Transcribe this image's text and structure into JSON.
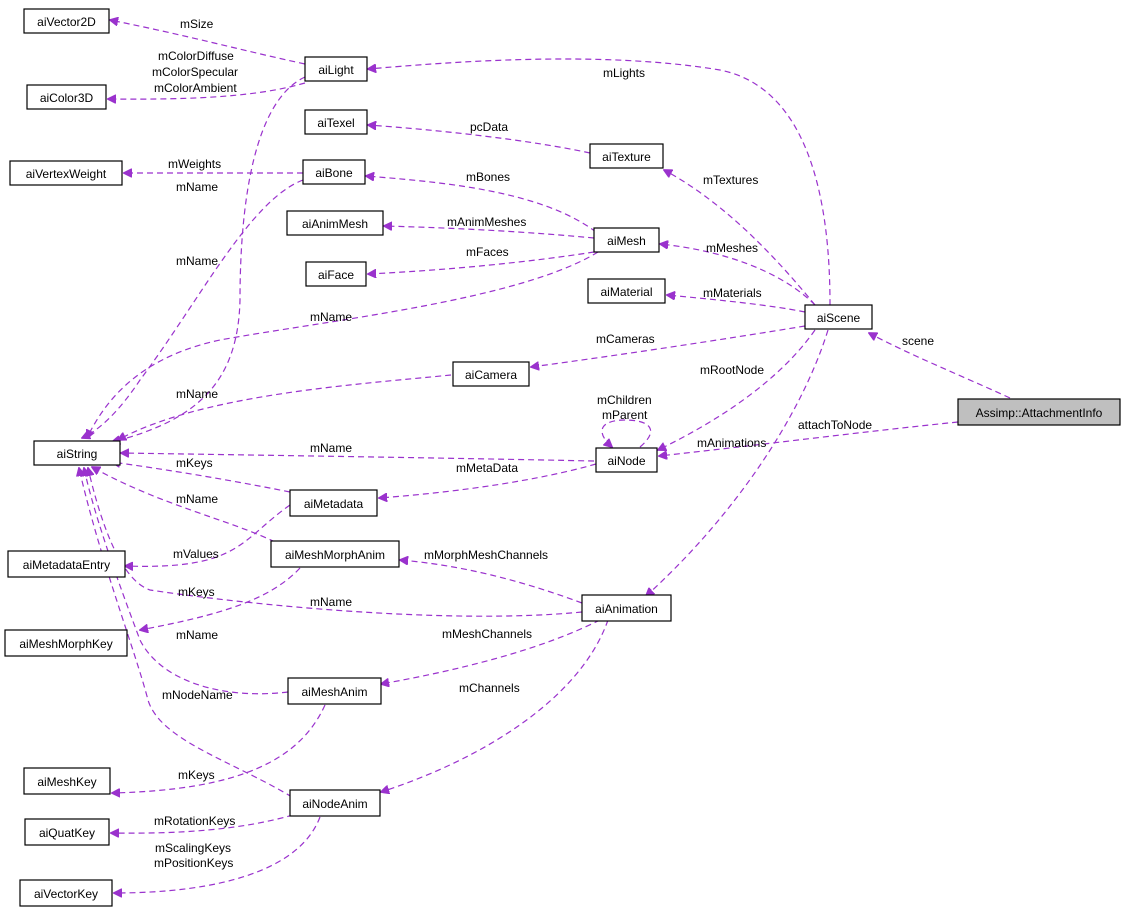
{
  "colors": {
    "edge": "#9a32cd",
    "box_border": "#000000",
    "highlight_fill": "#bfbfbf"
  },
  "nodes": {
    "aiVector2D": "aiVector2D",
    "aiLight": "aiLight",
    "aiColor3D": "aiColor3D",
    "aiTexel": "aiTexel",
    "aiTexture": "aiTexture",
    "aiVertexWeight": "aiVertexWeight",
    "aiBone": "aiBone",
    "aiAnimMesh": "aiAnimMesh",
    "aiMesh": "aiMesh",
    "aiFace": "aiFace",
    "aiMaterial": "aiMaterial",
    "aiScene": "aiScene",
    "aiCamera": "aiCamera",
    "aiString": "aiString",
    "aiNode": "aiNode",
    "AttachmentInfo": "Assimp::AttachmentInfo",
    "aiMetadata": "aiMetadata",
    "aiMetadataEntry": "aiMetadataEntry",
    "aiMeshMorphAnim": "aiMeshMorphAnim",
    "aiAnimation": "aiAnimation",
    "aiMeshMorphKey": "aiMeshMorphKey",
    "aiMeshAnim": "aiMeshAnim",
    "aiMeshKey": "aiMeshKey",
    "aiNodeAnim": "aiNodeAnim",
    "aiQuatKey": "aiQuatKey",
    "aiVectorKey": "aiVectorKey"
  },
  "labels": {
    "mSize": "mSize",
    "mColorDiffuse": "mColorDiffuse",
    "mColorSpecular": "mColorSpecular",
    "mColorAmbient": "mColorAmbient",
    "mLights": "mLights",
    "pcData": "pcData",
    "mWeights": "mWeights",
    "mName_bone": "mName",
    "mTextures": "mTextures",
    "mBones": "mBones",
    "mAnimMeshes": "mAnimMeshes",
    "mMeshes": "mMeshes",
    "mName_light": "mName",
    "mFaces": "mFaces",
    "mMaterials": "mMaterials",
    "mName_mesh": "mName",
    "scene": "scene",
    "mCameras": "mCameras",
    "mName_camera": "mName",
    "mRootNode": "mRootNode",
    "mChildren": "mChildren",
    "mParent": "mParent",
    "attachToNode": "attachToNode",
    "mAnimations": "mAnimations",
    "mName_node": "mName",
    "mKeys_metadata": "mKeys",
    "mMetaData": "mMetaData",
    "mName_morph": "mName",
    "mValues": "mValues",
    "mMorphMeshChannels": "mMorphMeshChannels",
    "mKeys_morph": "mKeys",
    "mName_animation": "mName",
    "mName_meshanim": "mName",
    "mMeshChannels": "mMeshChannels",
    "mChannels": "mChannels",
    "mNodeName": "mNodeName",
    "mKeys_meshanim": "mKeys",
    "mRotationKeys": "mRotationKeys",
    "mScalingKeys": "mScalingKeys",
    "mPositionKeys": "mPositionKeys"
  }
}
